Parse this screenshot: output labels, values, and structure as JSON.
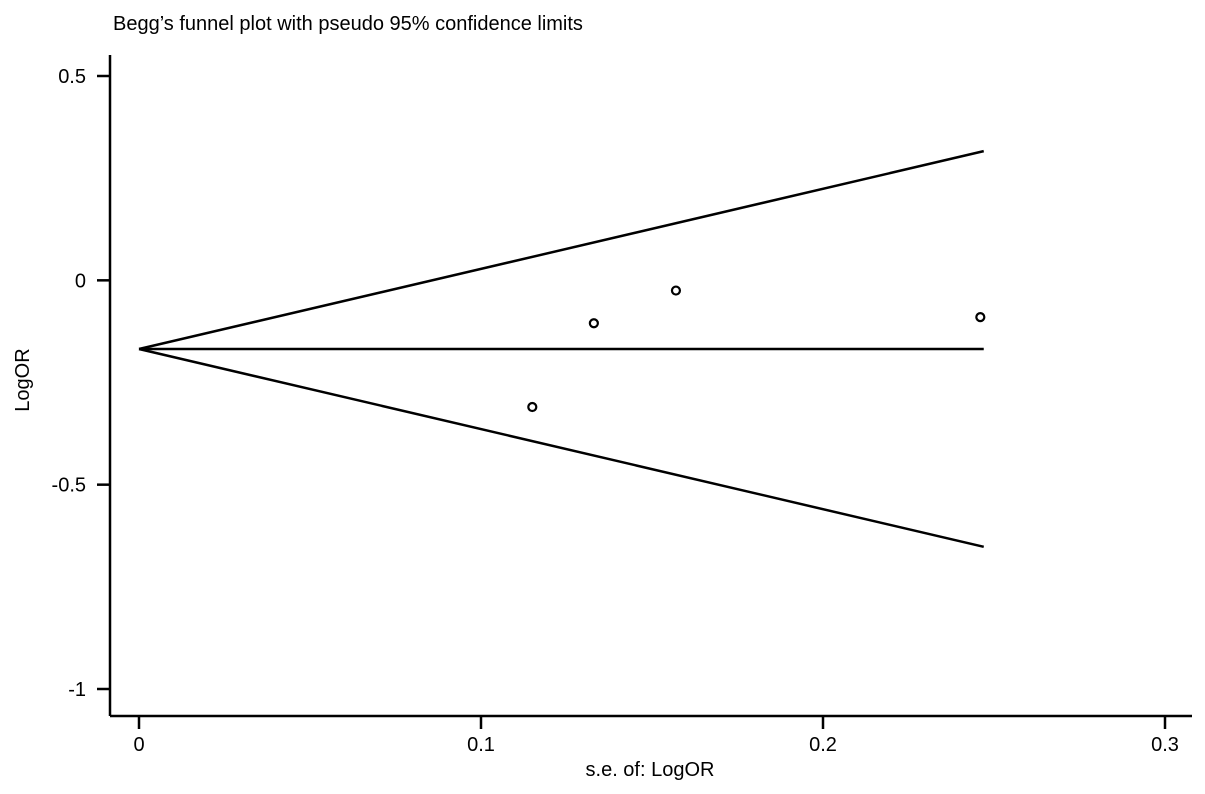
{
  "chart_data": {
    "type": "scatter",
    "title": "Begg’s funnel plot with pseudo 95% confidence limits",
    "xlabel": "s.e. of: LogOR",
    "ylabel": "LogOR",
    "xlim": [
      0,
      0.3
    ],
    "ylim": [
      -1,
      0.5
    ],
    "x_ticks": [
      0,
      0.1,
      0.2,
      0.3
    ],
    "x_tick_labels": [
      "0",
      "0.1",
      "0.2",
      "0.3"
    ],
    "y_ticks": [
      0.5,
      0,
      -0.5,
      -1
    ],
    "y_tick_labels": [
      "0.5",
      "0",
      "-0.5",
      "-1"
    ],
    "pooled_estimate": -0.168,
    "se_max": 0.247,
    "points": [
      {
        "x": 0.115,
        "y": -0.31
      },
      {
        "x": 0.133,
        "y": -0.105
      },
      {
        "x": 0.157,
        "y": -0.025
      },
      {
        "x": 0.246,
        "y": -0.09
      }
    ],
    "grid": false,
    "legend": "none"
  }
}
